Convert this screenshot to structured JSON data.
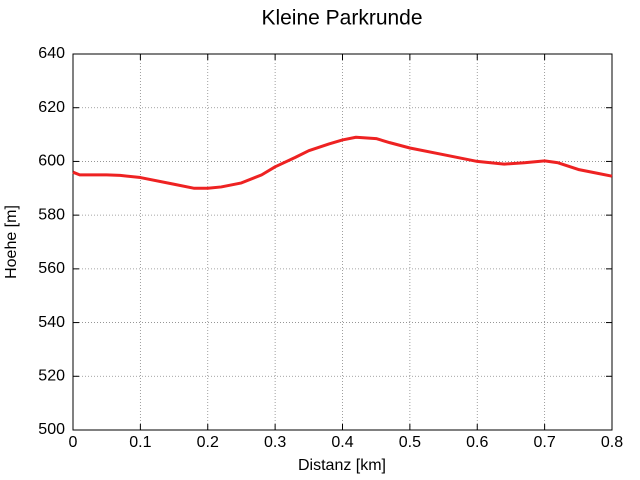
{
  "chart_data": {
    "type": "line",
    "title": "Kleine Parkrunde",
    "xlabel": "Distanz [km]",
    "ylabel": "Hoehe [m]",
    "x": [
      0,
      0.01,
      0.05,
      0.07,
      0.1,
      0.15,
      0.18,
      0.2,
      0.22,
      0.25,
      0.28,
      0.3,
      0.33,
      0.35,
      0.38,
      0.4,
      0.42,
      0.45,
      0.47,
      0.5,
      0.55,
      0.6,
      0.64,
      0.67,
      0.7,
      0.72,
      0.75,
      0.78,
      0.8
    ],
    "series": [
      {
        "name": "Hoehe",
        "color": "#ee2222",
        "values": [
          596,
          595,
          595,
          594.8,
          594,
          591.5,
          590,
          590,
          590.5,
          592,
          595,
          598,
          601.5,
          604,
          606.5,
          608,
          609,
          608.5,
          607,
          605,
          602.5,
          600,
          599,
          599.5,
          600.2,
          599.5,
          597,
          595.5,
          594.5
        ]
      }
    ],
    "xlim": [
      0,
      0.8
    ],
    "xticks": [
      0,
      0.1,
      0.2,
      0.3,
      0.4,
      0.5,
      0.6,
      0.7,
      0.8
    ],
    "ylim": [
      500,
      640
    ],
    "yticks": [
      500,
      520,
      540,
      560,
      580,
      600,
      620,
      640
    ],
    "grid": true
  }
}
